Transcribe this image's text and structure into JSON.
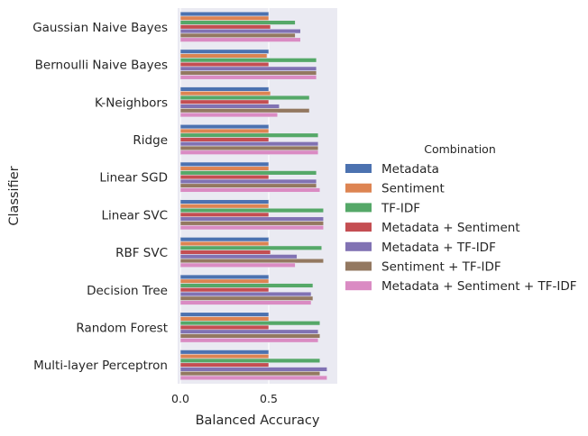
{
  "chart_data": {
    "type": "bar",
    "orientation": "horizontal",
    "xlabel": "Balanced Accuracy",
    "ylabel": "Classifier",
    "xlim": [
      0,
      0.88
    ],
    "xticks": [
      0.0,
      0.5
    ],
    "xtick_labels": [
      "0.0",
      "0.5"
    ],
    "grid": true,
    "legend_title": "Combination",
    "legend_position": "right",
    "categories": [
      "Gaussian Naive Bayes",
      "Bernoulli Naive Bayes",
      "K-Neighbors",
      "Ridge",
      "Linear SGD",
      "Linear SVC",
      "RBF SVC",
      "Decision Tree",
      "Random Forest",
      "Multi-layer Perceptron"
    ],
    "series": [
      {
        "name": "Metadata",
        "color": "#4c72b0",
        "values": [
          0.5,
          0.5,
          0.5,
          0.5,
          0.5,
          0.5,
          0.5,
          0.5,
          0.5,
          0.5
        ]
      },
      {
        "name": "Sentiment",
        "color": "#dd8452",
        "values": [
          0.5,
          0.49,
          0.51,
          0.5,
          0.5,
          0.5,
          0.5,
          0.5,
          0.5,
          0.5
        ]
      },
      {
        "name": "TF-IDF",
        "color": "#55a868",
        "values": [
          0.65,
          0.77,
          0.73,
          0.78,
          0.77,
          0.81,
          0.8,
          0.75,
          0.79,
          0.79
        ]
      },
      {
        "name": "Metadata + Sentiment",
        "color": "#c44e52",
        "values": [
          0.51,
          0.5,
          0.5,
          0.5,
          0.5,
          0.5,
          0.51,
          0.5,
          0.5,
          0.5
        ]
      },
      {
        "name": "Metadata + TF-IDF",
        "color": "#8172b3",
        "values": [
          0.68,
          0.77,
          0.56,
          0.78,
          0.77,
          0.81,
          0.66,
          0.74,
          0.78,
          0.83
        ]
      },
      {
        "name": "Sentiment + TF-IDF",
        "color": "#937860",
        "values": [
          0.65,
          0.77,
          0.73,
          0.78,
          0.77,
          0.81,
          0.81,
          0.75,
          0.79,
          0.79
        ]
      },
      {
        "name": "Metadata + Sentiment + TF-IDF",
        "color": "#da8bc3",
        "values": [
          0.68,
          0.77,
          0.55,
          0.78,
          0.79,
          0.81,
          0.65,
          0.74,
          0.78,
          0.83
        ]
      }
    ]
  }
}
